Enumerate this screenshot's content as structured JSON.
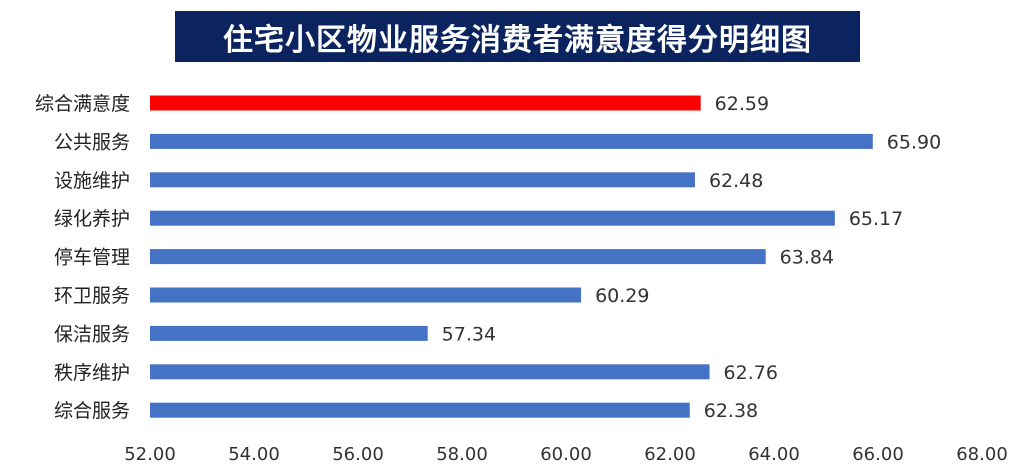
{
  "header": {
    "title": "住宅小区物业服务消费者满意度得分明细图"
  },
  "colors": {
    "title_bg": "#0b2460",
    "highlight_bar": "#ff0000",
    "bar": "#4472c4"
  },
  "chart_data": {
    "type": "bar",
    "orientation": "horizontal",
    "title": "住宅小区物业服务消费者满意度得分明细图",
    "categories": [
      "综合满意度",
      "公共服务",
      "设施维护",
      "绿化养护",
      "停车管理",
      "环卫服务",
      "保洁服务",
      "秩序维护",
      "综合服务"
    ],
    "values": [
      62.59,
      65.9,
      62.48,
      65.17,
      63.84,
      60.29,
      57.34,
      62.76,
      62.38
    ],
    "value_labels": [
      "62.59",
      "65.90",
      "62.48",
      "65.17",
      "63.84",
      "60.29",
      "57.34",
      "62.76",
      "62.38"
    ],
    "highlight_index": 0,
    "xlim": [
      52,
      68
    ],
    "xticks": [
      "52.00",
      "54.00",
      "56.00",
      "58.00",
      "60.00",
      "62.00",
      "64.00",
      "66.00",
      "68.00"
    ],
    "xlabel": "",
    "ylabel": "",
    "grid": false,
    "legend": "none"
  }
}
